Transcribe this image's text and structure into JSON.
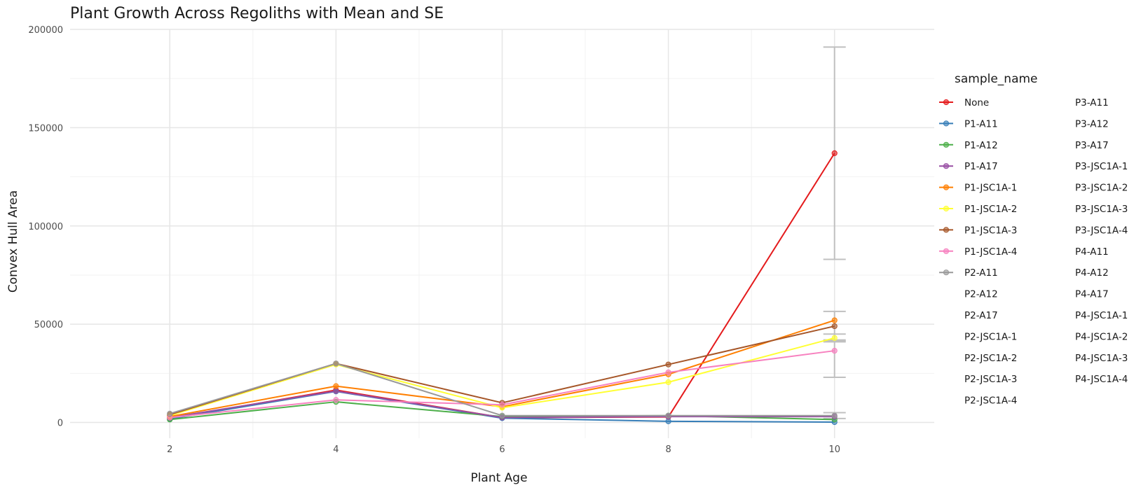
{
  "chart_data": {
    "type": "line",
    "title": "Plant Growth Across Regoliths with Mean and SE",
    "xlabel": "Plant Age",
    "ylabel": "Convex Hull Area",
    "xlim": [
      0.8,
      11.2
    ],
    "ylim": [
      -8000,
      200000
    ],
    "x_ticks": [
      2,
      4,
      6,
      8,
      10
    ],
    "y_ticks": [
      0,
      50000,
      100000,
      150000,
      200000
    ],
    "y_tick_labels": [
      "0",
      "50000",
      "100000",
      "150000",
      "200000"
    ],
    "grid": true,
    "legend_title": "sample_name",
    "legend_position": "right",
    "x": [
      2,
      4,
      6,
      8,
      10
    ],
    "series": [
      {
        "name": "None",
        "color": "#E41A1C",
        "values": [
          2000,
          16500,
          2500,
          2800,
          137000
        ],
        "se": [
          null,
          null,
          null,
          null,
          54000
        ]
      },
      {
        "name": "P1-A11",
        "color": "#377EB8",
        "values": [
          1800,
          15800,
          2200,
          600,
          200
        ],
        "se": null
      },
      {
        "name": "P1-A12",
        "color": "#4DAF4A",
        "values": [
          1500,
          10500,
          3000,
          3500,
          1500
        ],
        "se": null
      },
      {
        "name": "P1-A17",
        "color": "#984EA3",
        "values": [
          2500,
          16000,
          2500,
          3000,
          3000
        ],
        "se": null
      },
      {
        "name": "P1-JSC1A-1",
        "color": "#FF7F00",
        "values": [
          3000,
          18500,
          8000,
          24500,
          52000
        ],
        "se": null
      },
      {
        "name": "P1-JSC1A-2",
        "color": "#FFFF33",
        "values": [
          3500,
          29500,
          7500,
          20500,
          43000
        ],
        "se": null
      },
      {
        "name": "P1-JSC1A-3",
        "color": "#A65628",
        "values": [
          4000,
          30000,
          10000,
          29500,
          49000
        ],
        "se": [
          null,
          null,
          null,
          null,
          7500
        ]
      },
      {
        "name": "P1-JSC1A-4",
        "color": "#F781BF",
        "values": [
          2500,
          11500,
          9000,
          25500,
          36500
        ],
        "se": null
      },
      {
        "name": "P2-A11",
        "color": "#999999",
        "values": [
          4500,
          30000,
          3500,
          3500,
          3500
        ],
        "se": [
          null,
          null,
          null,
          null,
          1500
        ]
      }
    ],
    "se_extras": [
      {
        "x": 10,
        "low": 42000,
        "high": 45000
      },
      {
        "x": 10,
        "low": 23000,
        "high": 41000
      }
    ],
    "legend_entries_without_marks": [
      "P2-A12",
      "P2-A17",
      "P2-JSC1A-1",
      "P2-JSC1A-2",
      "P2-JSC1A-3",
      "P2-JSC1A-4",
      "P3-A11",
      "P3-A12",
      "P3-A17",
      "P3-JSC1A-1",
      "P3-JSC1A-2",
      "P3-JSC1A-3",
      "P3-JSC1A-4",
      "P4-A11",
      "P4-A12",
      "P4-A17",
      "P4-JSC1A-1",
      "P4-JSC1A-2",
      "P4-JSC1A-3",
      "P4-JSC1A-4"
    ]
  }
}
